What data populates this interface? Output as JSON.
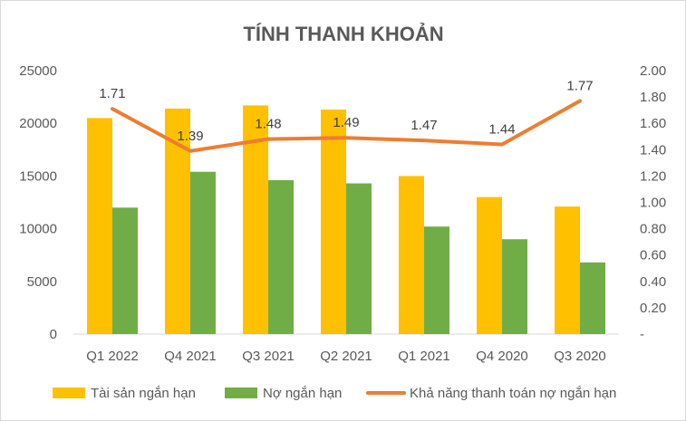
{
  "chart_data": {
    "type": "bar",
    "title": "TÍNH THANH KHOẢN",
    "categories": [
      "Q1 2022",
      "Q4 2021",
      "Q3 2021",
      "Q2 2021",
      "Q1 2021",
      "Q4 2020",
      "Q3 2020"
    ],
    "series": [
      {
        "name": "Tài sản ngắn hạn",
        "type": "bar",
        "axis": "left",
        "color": "#FFC000",
        "values": [
          20500,
          21400,
          21700,
          21300,
          15000,
          13000,
          12100
        ]
      },
      {
        "name": "Nợ ngắn hạn",
        "type": "bar",
        "axis": "left",
        "color": "#70AD47",
        "values": [
          12000,
          15400,
          14600,
          14300,
          10200,
          9000,
          6800
        ]
      },
      {
        "name": "Khả năng thanh toán nợ ngắn hạn",
        "type": "line",
        "axis": "right",
        "color": "#ED7D31",
        "values": [
          1.71,
          1.39,
          1.48,
          1.49,
          1.47,
          1.44,
          1.77
        ],
        "labels": [
          "1.71",
          "1.39",
          "1.48",
          "1.49",
          "1.47",
          "1.44",
          "1.77"
        ]
      }
    ],
    "left_axis": {
      "min": 0,
      "max": 25000,
      "ticks": [
        {
          "value": 0,
          "label": "0"
        },
        {
          "value": 5000,
          "label": "5000"
        },
        {
          "value": 10000,
          "label": "10000"
        },
        {
          "value": 15000,
          "label": "15000"
        },
        {
          "value": 20000,
          "label": "20000"
        },
        {
          "value": 25000,
          "label": "25000"
        }
      ]
    },
    "right_axis": {
      "min": 0,
      "max": 2.0,
      "ticks": [
        {
          "value": 0,
          "label": "-"
        },
        {
          "value": 0.2,
          "label": "0.20"
        },
        {
          "value": 0.4,
          "label": "0.40"
        },
        {
          "value": 0.6,
          "label": "0.60"
        },
        {
          "value": 0.8,
          "label": "0.80"
        },
        {
          "value": 1.0,
          "label": "1.00"
        },
        {
          "value": 1.2,
          "label": "1.20"
        },
        {
          "value": 1.4,
          "label": "1.40"
        },
        {
          "value": 1.6,
          "label": "1.60"
        },
        {
          "value": 1.8,
          "label": "1.80"
        },
        {
          "value": 2.0,
          "label": "2.00"
        }
      ]
    },
    "grid": false,
    "legend_position": "bottom"
  }
}
